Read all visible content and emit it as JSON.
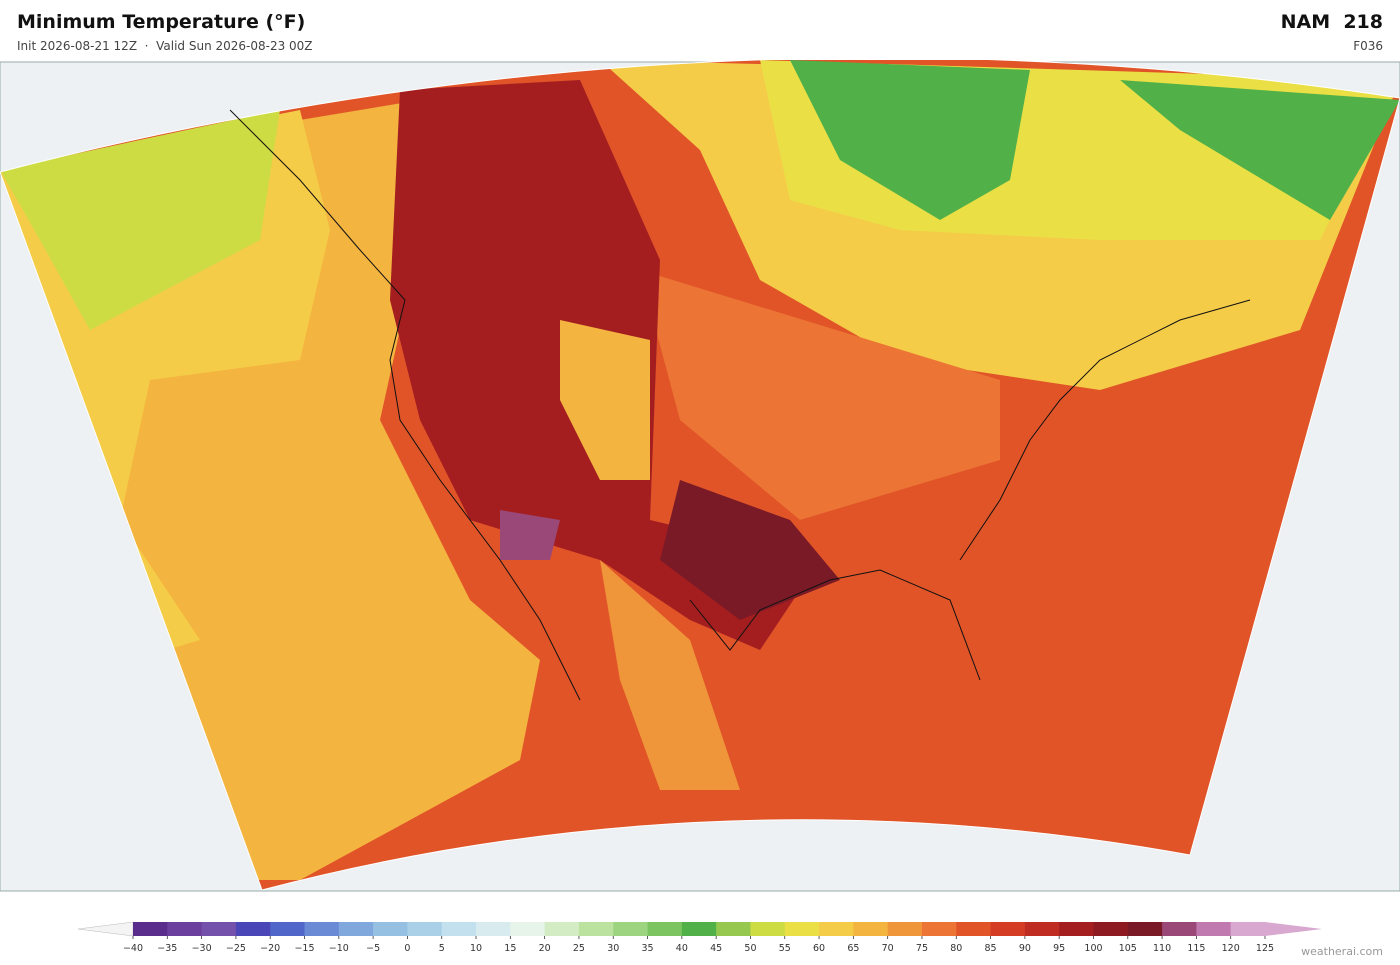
{
  "header": {
    "title": "Minimum Temperature  (°F)",
    "subtitle": "Init 2026-08-21 12Z  ·  Valid Sun 2026-08-23 00Z",
    "model": "NAM  218",
    "forecast": "F036"
  },
  "colorbar": {
    "ticks": [
      {
        "value": -40,
        "label": "−40"
      },
      {
        "value": -35,
        "label": "−35"
      },
      {
        "value": -30,
        "label": "−30"
      },
      {
        "value": -25,
        "label": "−25"
      },
      {
        "value": -20,
        "label": "−20"
      },
      {
        "value": -15,
        "label": "−15"
      },
      {
        "value": -10,
        "label": "−10"
      },
      {
        "value": -5,
        "label": "−5"
      },
      0,
      5,
      10,
      15,
      20,
      25,
      30,
      35,
      40,
      45,
      50,
      55,
      60,
      65,
      70,
      75,
      80,
      85,
      90,
      95,
      100,
      105,
      110,
      115,
      120,
      125
    ],
    "colors": [
      "#5a2d8c",
      "#6a3f9e",
      "#7451aa",
      "#4a46b8",
      "#5066c8",
      "#6a8ad6",
      "#80a8dc",
      "#96c0e2",
      "#aad0e8",
      "#c2e0ee",
      "#d8ecf0",
      "#e6f4ea",
      "#d4ecc4",
      "#bce2a0",
      "#9cd480",
      "#7cc460",
      "#52b048",
      "#96c850",
      "#cedc44",
      "#eae046",
      "#f4cc48",
      "#f4b440",
      "#f0963a",
      "#ec7434",
      "#e05428",
      "#d43c24",
      "#be2c22",
      "#a41e20",
      "#8c1a20",
      "#7a1a26",
      "#9a4878",
      "#c07ab0",
      "#d8a8d0"
    ]
  },
  "footer": {
    "credit": "weatherai.com"
  }
}
